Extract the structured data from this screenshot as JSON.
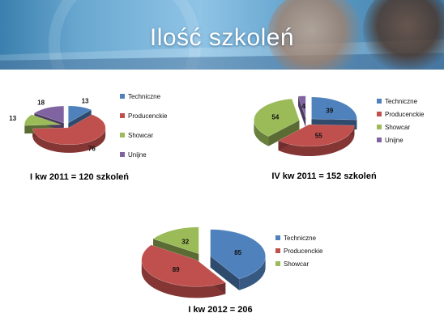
{
  "slide": {
    "title": "Ilość szkoleń"
  },
  "colors": {
    "Techniczne": "#4f81bd",
    "Producenckie": "#c0504d",
    "Showcar": "#9bbb59",
    "Unijne": "#8064a2"
  },
  "chart_data": [
    {
      "type": "pie",
      "style": "3d-exploded",
      "title": "I kw 2011 = 120 szkoleń",
      "categories": [
        "Techniczne",
        "Producenckie",
        "Showcar",
        "Unijne"
      ],
      "values": [
        13,
        76,
        13,
        18
      ],
      "legend": [
        "Techniczne",
        "Producenckie",
        "Showcar",
        "Unijne"
      ],
      "legend_position": "right"
    },
    {
      "type": "pie",
      "style": "3d-exploded",
      "title": "IV kw 2011 = 152 szkoleń",
      "categories": [
        "Techniczne",
        "Producenckie",
        "Showcar",
        "Unijne"
      ],
      "values": [
        39,
        55,
        54,
        4
      ],
      "legend": [
        "Techniczne",
        "Producenckie",
        "Showcar",
        "Unijne"
      ],
      "legend_position": "right"
    },
    {
      "type": "pie",
      "style": "3d-exploded",
      "title": "I kw 2012 = 206",
      "categories": [
        "Techniczne",
        "Producenckie",
        "Showcar"
      ],
      "values": [
        85,
        89,
        32
      ],
      "legend": [
        "Techniczne",
        "Producenckie",
        "Showcar"
      ],
      "legend_position": "right"
    }
  ]
}
